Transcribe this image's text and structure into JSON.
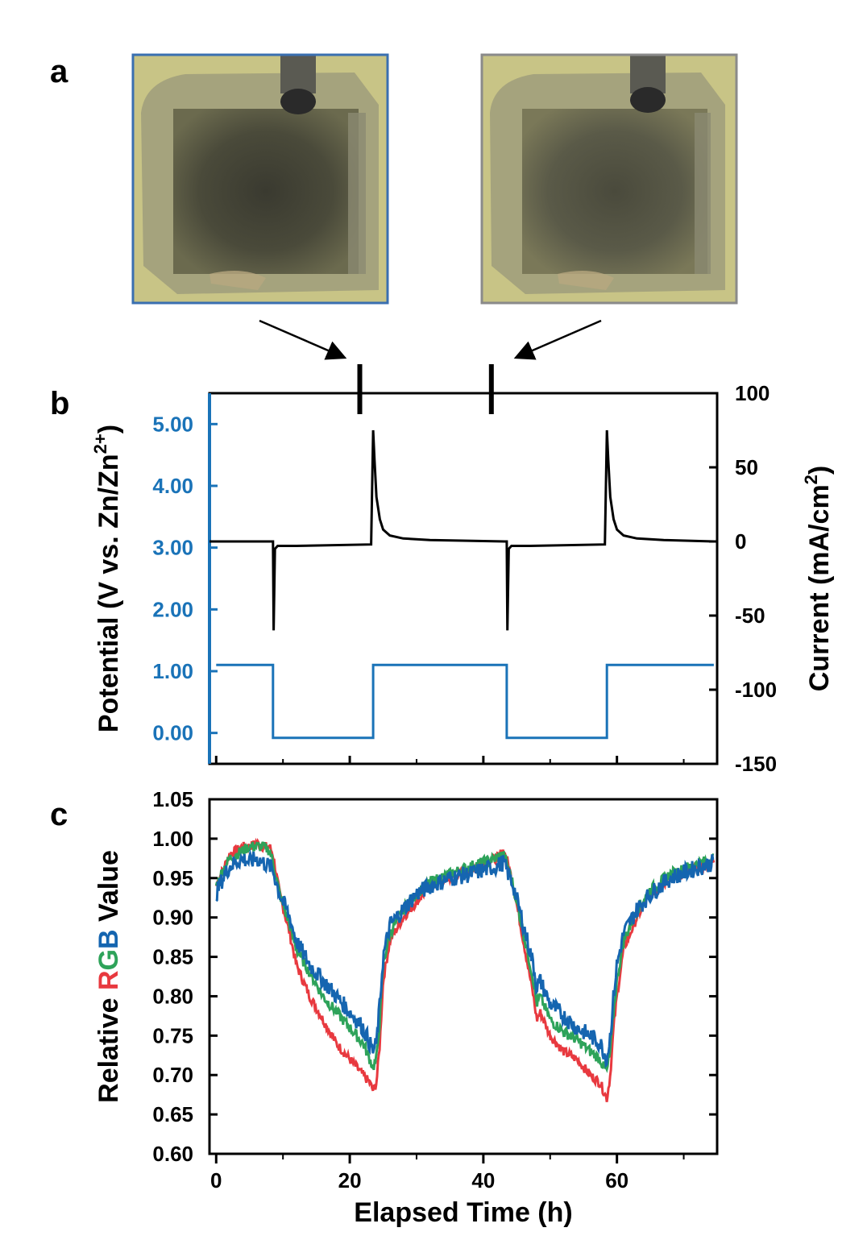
{
  "colors": {
    "potential": "#1a73b8",
    "current": "#000000",
    "red": "#e8393f",
    "green": "#2ea35a",
    "blue": "#1565b0",
    "photo_left_frame": "#3a6fb0",
    "photo_right_frame": "#8a8a8a"
  },
  "panels": {
    "a": "a",
    "b": "b",
    "c": "c"
  },
  "photos": [
    {
      "name": "photo-charged-state",
      "frame": "blue"
    },
    {
      "name": "photo-discharged-state",
      "frame": "gray"
    }
  ],
  "chart_data": [
    {
      "panel": "b",
      "type": "line",
      "xlim": [
        -1,
        75
      ],
      "left_axis": {
        "label": "Potential (V vs. Zn/Zn",
        "label_sup": "2+",
        "label_end": ")",
        "ylim": [
          -0.5,
          5.5
        ],
        "ticks": [
          "5.00",
          "4.00",
          "3.00",
          "2.00",
          "1.00",
          "0.00"
        ],
        "tick_values": [
          5,
          4,
          3,
          2,
          1,
          0
        ],
        "color": "#1a73b8"
      },
      "right_axis": {
        "label": "Current (mA/cm",
        "label_sup": "2",
        "label_end": ")",
        "ylim": [
          -150,
          100
        ],
        "ticks": [
          "100",
          "50",
          "0",
          "-50",
          "-100",
          "-150"
        ],
        "tick_values": [
          100,
          50,
          0,
          -50,
          -100,
          -150
        ]
      },
      "series": [
        {
          "axis": "left",
          "x": [
            0,
            8.5,
            8.5,
            23.5,
            23.5,
            43.5,
            43.5,
            58.5,
            58.5,
            74.5
          ],
          "y": [
            1.1,
            1.1,
            -0.08,
            -0.08,
            1.1,
            1.1,
            -0.08,
            -0.08,
            1.1,
            1.1
          ]
        },
        {
          "axis": "right",
          "x": [
            -1,
            8.5,
            8.6,
            8.8,
            9.2,
            12,
            23.2,
            23.5,
            23.7,
            24,
            24.5,
            25,
            26,
            28,
            32,
            43.2,
            43.5,
            43.6,
            43.8,
            44.2,
            47,
            58.2,
            58.5,
            58.7,
            59,
            59.5,
            60,
            61,
            63,
            67,
            74.5
          ],
          "y": [
            0,
            0,
            -60,
            -5,
            -3,
            -3,
            -2,
            75,
            55,
            30,
            15,
            8,
            4,
            2,
            1,
            0,
            0,
            -60,
            -5,
            -3,
            -3,
            -2,
            75,
            55,
            30,
            15,
            8,
            4,
            2,
            1,
            0
          ]
        }
      ],
      "markers_x": [
        21.5,
        41.2
      ]
    },
    {
      "panel": "c",
      "type": "line",
      "xlabel": "Elapsed Time (h)",
      "ylabel_parts": [
        "Relative ",
        "R",
        "G",
        "B",
        " Value"
      ],
      "xlim": [
        -1,
        75
      ],
      "ylim": [
        0.6,
        1.05
      ],
      "x_ticks": [
        "0",
        "20",
        "40",
        "60"
      ],
      "x_tick_values": [
        0,
        20,
        40,
        60
      ],
      "y_ticks": [
        "1.05",
        "1.00",
        "0.95",
        "0.90",
        "0.85",
        "0.80",
        "0.75",
        "0.70",
        "0.65",
        "0.60"
      ],
      "y_tick_values": [
        1.05,
        1.0,
        0.95,
        0.9,
        0.85,
        0.8,
        0.75,
        0.7,
        0.65,
        0.6
      ],
      "series": [
        {
          "name": "R",
          "color": "#e8393f",
          "x": [
            0,
            1,
            2,
            3,
            4,
            5,
            6,
            7,
            8,
            8.5,
            9.5,
            11,
            12,
            14,
            16,
            18,
            20,
            22,
            23,
            23.5,
            24,
            24.5,
            25,
            26,
            28,
            30,
            32,
            35,
            38,
            40,
            42,
            43,
            43.5,
            44.5,
            46,
            47.5,
            48,
            48.5,
            49,
            50,
            52,
            54,
            56,
            57.5,
            58,
            58.5,
            59,
            59.5,
            60,
            61,
            63,
            65,
            68,
            71,
            74.5
          ],
          "y": [
            0.94,
            0.96,
            0.98,
            0.985,
            0.99,
            0.99,
            0.995,
            0.99,
            0.99,
            0.98,
            0.93,
            0.88,
            0.84,
            0.8,
            0.77,
            0.74,
            0.72,
            0.7,
            0.69,
            0.68,
            0.69,
            0.74,
            0.82,
            0.87,
            0.9,
            0.92,
            0.94,
            0.95,
            0.96,
            0.97,
            0.975,
            0.985,
            0.975,
            0.94,
            0.87,
            0.8,
            0.77,
            0.78,
            0.77,
            0.75,
            0.73,
            0.72,
            0.7,
            0.69,
            0.68,
            0.67,
            0.7,
            0.76,
            0.8,
            0.86,
            0.9,
            0.93,
            0.95,
            0.96,
            0.97
          ]
        },
        {
          "name": "G",
          "color": "#2ea35a",
          "x": [
            0,
            1,
            2,
            3,
            4,
            5,
            6,
            7,
            8,
            8.5,
            9.5,
            11,
            12,
            14,
            16,
            18,
            20,
            22,
            23,
            23.5,
            24,
            24.5,
            25,
            26,
            28,
            30,
            32,
            35,
            38,
            40,
            42,
            43,
            43.5,
            44.5,
            46,
            47.5,
            48,
            48.5,
            49,
            50,
            52,
            54,
            56,
            57.5,
            58,
            58.5,
            59,
            59.5,
            60,
            61,
            63,
            65,
            68,
            71,
            74.5
          ],
          "y": [
            0.94,
            0.96,
            0.975,
            0.98,
            0.985,
            0.99,
            0.99,
            0.99,
            0.985,
            0.97,
            0.93,
            0.89,
            0.86,
            0.83,
            0.8,
            0.78,
            0.76,
            0.74,
            0.72,
            0.71,
            0.72,
            0.77,
            0.84,
            0.88,
            0.91,
            0.93,
            0.945,
            0.955,
            0.965,
            0.97,
            0.975,
            0.98,
            0.97,
            0.94,
            0.88,
            0.82,
            0.79,
            0.8,
            0.79,
            0.77,
            0.755,
            0.745,
            0.73,
            0.72,
            0.71,
            0.705,
            0.73,
            0.78,
            0.82,
            0.87,
            0.91,
            0.935,
            0.955,
            0.965,
            0.975
          ]
        },
        {
          "name": "B",
          "color": "#1565b0",
          "x": [
            0,
            1,
            2,
            3,
            4,
            5,
            6,
            7,
            8,
            8.5,
            9.5,
            11,
            12,
            14,
            16,
            18,
            20,
            22,
            23,
            23.5,
            24,
            24.5,
            25,
            26,
            28,
            30,
            32,
            35,
            38,
            40,
            42,
            43,
            43.5,
            44.5,
            46,
            47.5,
            48,
            48.5,
            49,
            50,
            52,
            54,
            56,
            57.5,
            58,
            58.5,
            59,
            59.5,
            60,
            61,
            63,
            65,
            68,
            71,
            74.5
          ],
          "y": [
            0.93,
            0.95,
            0.965,
            0.97,
            0.975,
            0.97,
            0.975,
            0.97,
            0.965,
            0.96,
            0.93,
            0.9,
            0.87,
            0.84,
            0.82,
            0.8,
            0.78,
            0.76,
            0.74,
            0.73,
            0.74,
            0.79,
            0.85,
            0.89,
            0.91,
            0.93,
            0.94,
            0.95,
            0.955,
            0.96,
            0.965,
            0.97,
            0.96,
            0.94,
            0.89,
            0.84,
            0.81,
            0.82,
            0.81,
            0.79,
            0.775,
            0.76,
            0.75,
            0.74,
            0.73,
            0.72,
            0.75,
            0.8,
            0.84,
            0.88,
            0.91,
            0.93,
            0.95,
            0.96,
            0.97
          ]
        }
      ]
    }
  ]
}
